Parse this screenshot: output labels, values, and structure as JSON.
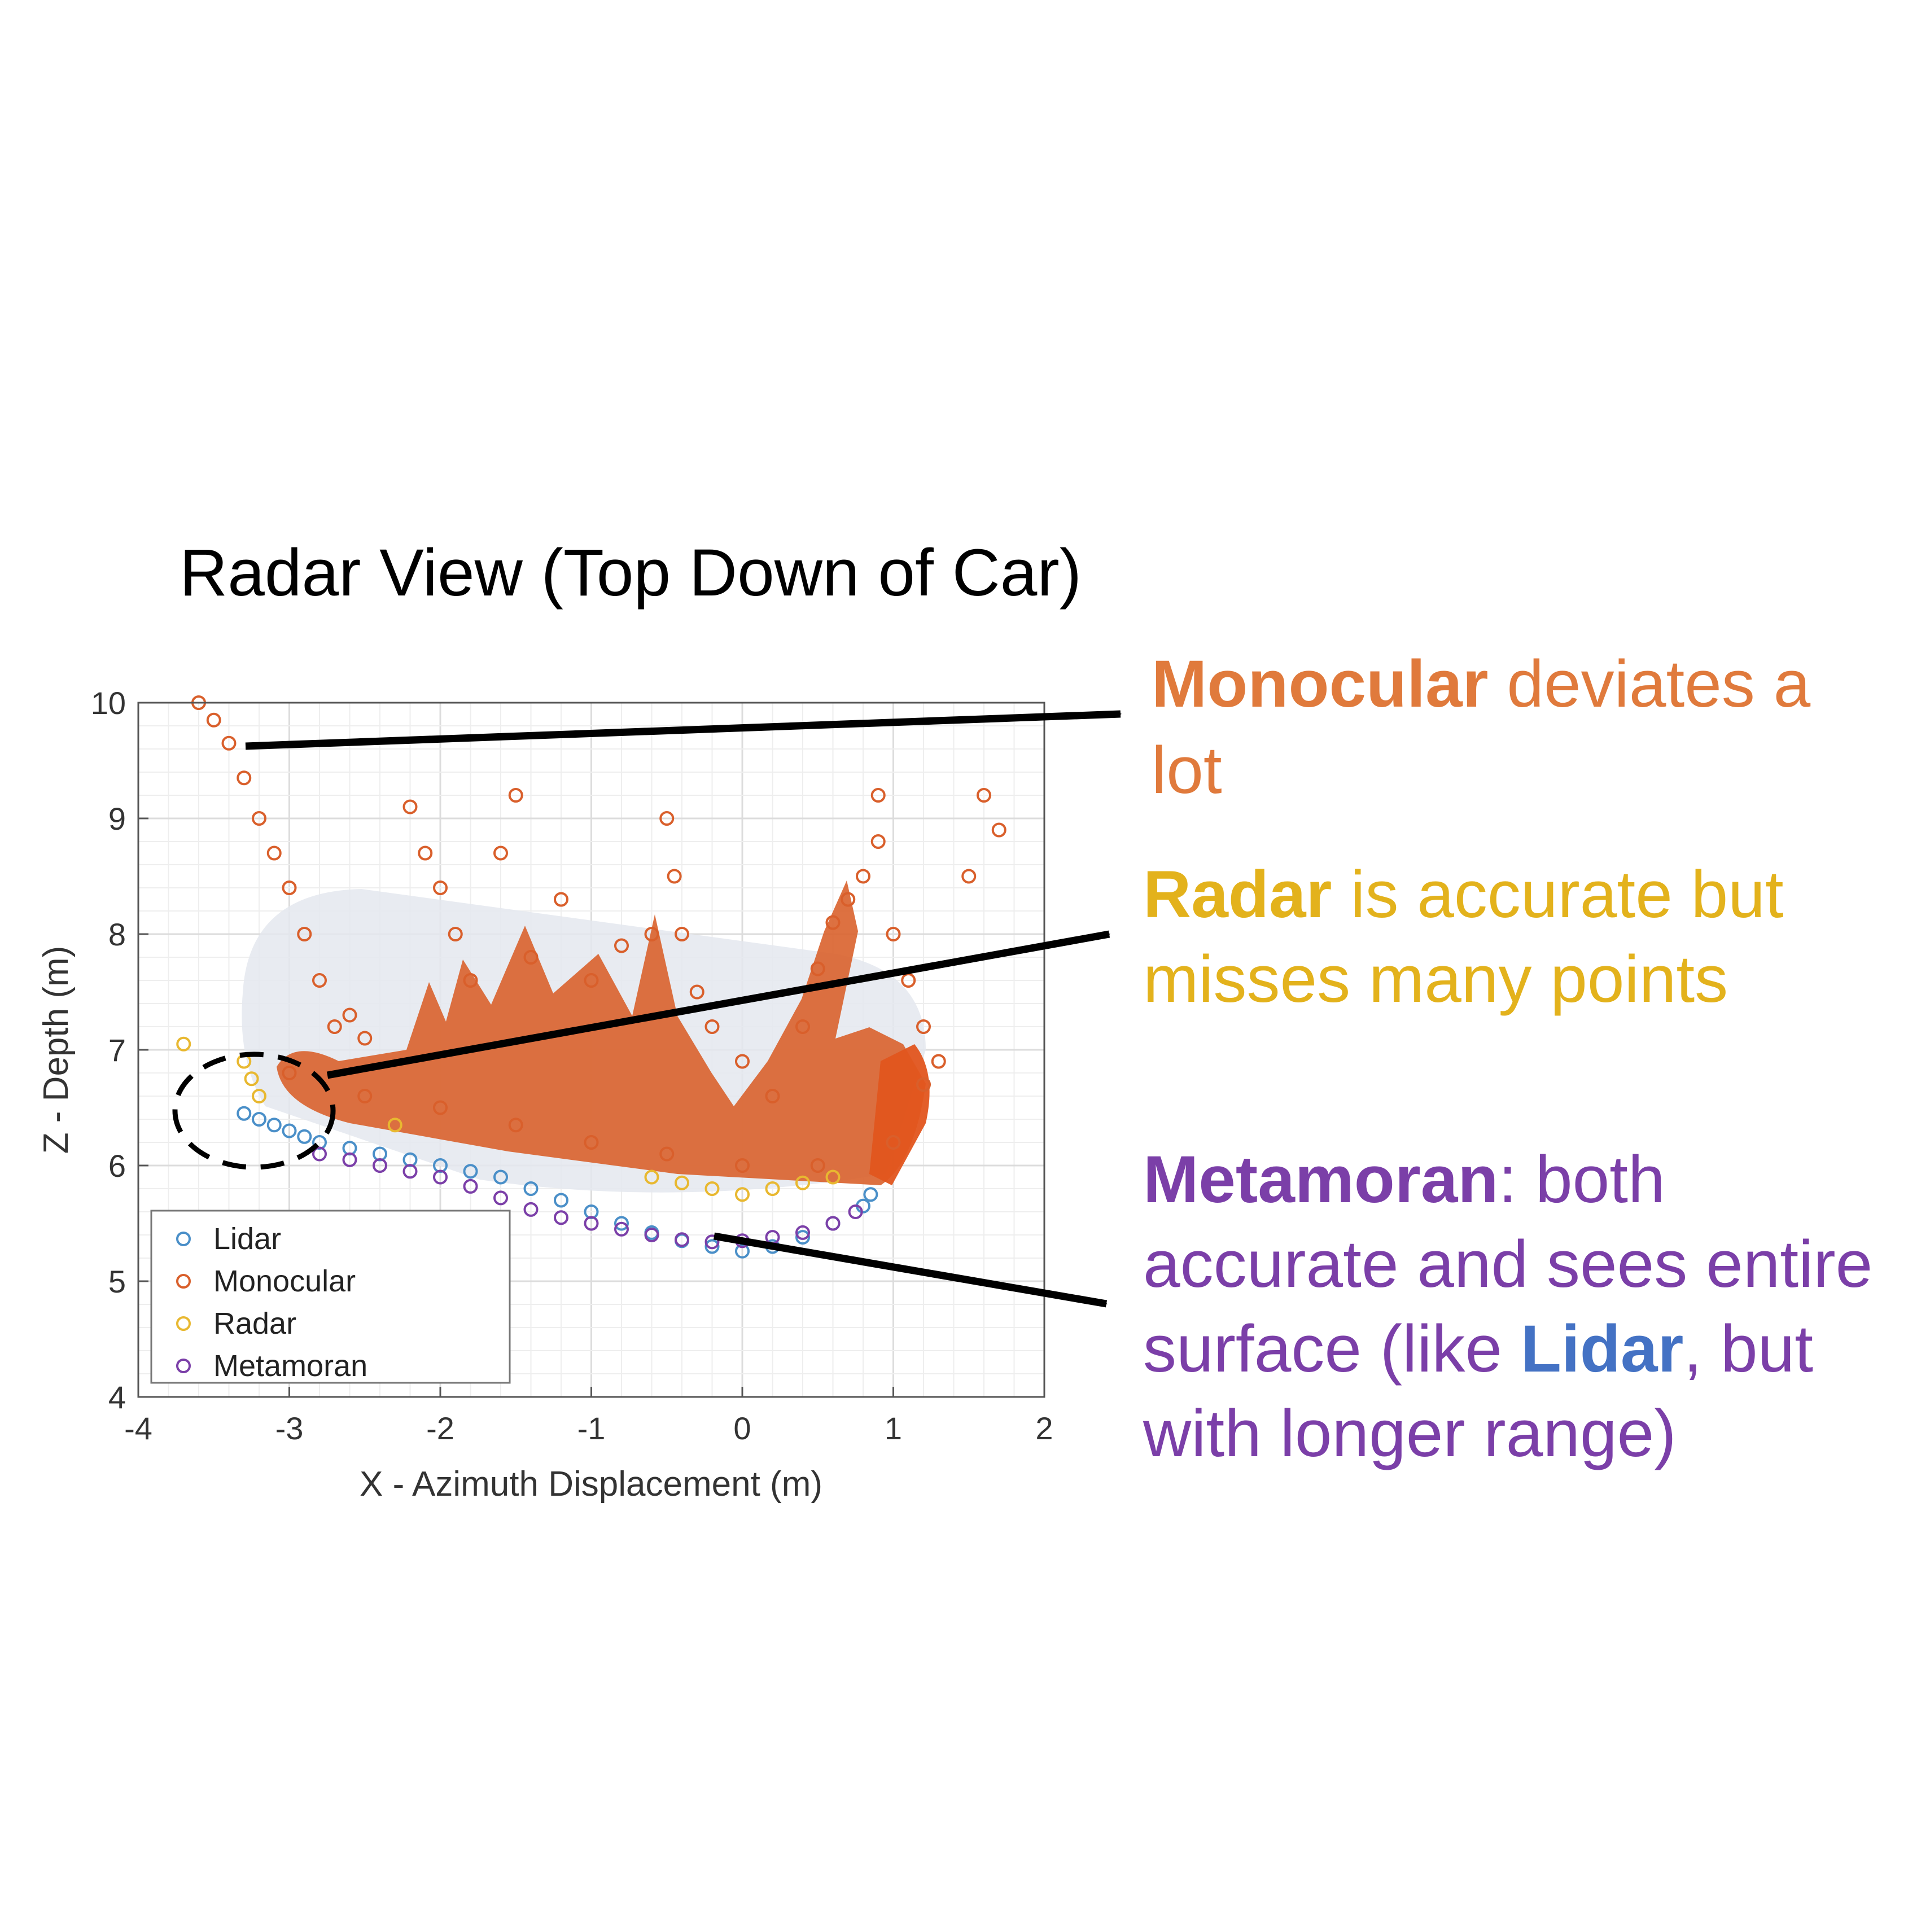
{
  "chart_data": {
    "type": "scatter",
    "title": "Radar View (Top Down of Car)",
    "xlabel": "X - Azimuth Displacement (m)",
    "ylabel": "Z - Depth (m)",
    "xlim": [
      -4,
      2
    ],
    "ylim": [
      4,
      10
    ],
    "xticks": [
      "-4",
      "-3",
      "-2",
      "-1",
      "0",
      "1",
      "2"
    ],
    "yticks": [
      "4",
      "5",
      "6",
      "7",
      "8",
      "9",
      "10"
    ],
    "grid": true,
    "legend_position": "bottom-left",
    "series": [
      {
        "name": "Lidar",
        "color": "#4a8fc8",
        "points": [
          [
            -3.3,
            6.45
          ],
          [
            -3.2,
            6.4
          ],
          [
            -3.1,
            6.35
          ],
          [
            -3.0,
            6.3
          ],
          [
            -2.9,
            6.25
          ],
          [
            -2.8,
            6.2
          ],
          [
            -2.6,
            6.15
          ],
          [
            -2.4,
            6.1
          ],
          [
            -2.2,
            6.05
          ],
          [
            -2.0,
            6.0
          ],
          [
            -1.8,
            5.95
          ],
          [
            -1.6,
            5.9
          ],
          [
            -1.4,
            5.8
          ],
          [
            -1.2,
            5.7
          ],
          [
            -1.0,
            5.6
          ],
          [
            -0.8,
            5.5
          ],
          [
            -0.6,
            5.42
          ],
          [
            -0.4,
            5.35
          ],
          [
            -0.2,
            5.3
          ],
          [
            0.0,
            5.26
          ],
          [
            0.2,
            5.3
          ],
          [
            0.4,
            5.38
          ],
          [
            0.6,
            5.5
          ],
          [
            0.8,
            5.65
          ],
          [
            0.85,
            5.75
          ]
        ]
      },
      {
        "name": "Monocular",
        "color": "#d95f2b",
        "points": [
          [
            -3.6,
            10.0
          ],
          [
            -3.5,
            9.85
          ],
          [
            -3.4,
            9.65
          ],
          [
            -3.3,
            9.35
          ],
          [
            -3.2,
            9.0
          ],
          [
            -3.1,
            8.7
          ],
          [
            -3.0,
            8.4
          ],
          [
            -2.9,
            8.0
          ],
          [
            -2.8,
            7.6
          ],
          [
            -2.7,
            7.2
          ],
          [
            -2.6,
            7.3
          ],
          [
            -2.5,
            7.1
          ],
          [
            -2.2,
            9.1
          ],
          [
            -2.1,
            8.7
          ],
          [
            -2.0,
            8.4
          ],
          [
            -1.9,
            8.0
          ],
          [
            -1.8,
            7.6
          ],
          [
            -1.5,
            9.2
          ],
          [
            -1.6,
            8.7
          ],
          [
            -1.4,
            7.8
          ],
          [
            -1.2,
            8.3
          ],
          [
            -1.0,
            7.6
          ],
          [
            -0.8,
            7.9
          ],
          [
            -0.6,
            8.0
          ],
          [
            -0.5,
            9.0
          ],
          [
            -0.45,
            8.5
          ],
          [
            -0.4,
            8.0
          ],
          [
            -0.3,
            7.5
          ],
          [
            -0.2,
            7.2
          ],
          [
            0.0,
            6.9
          ],
          [
            0.2,
            6.6
          ],
          [
            0.4,
            7.2
          ],
          [
            0.5,
            7.7
          ],
          [
            0.6,
            8.1
          ],
          [
            0.7,
            8.3
          ],
          [
            0.8,
            8.5
          ],
          [
            0.9,
            8.8
          ],
          [
            0.9,
            9.2
          ],
          [
            1.0,
            8.0
          ],
          [
            1.1,
            7.6
          ],
          [
            1.2,
            7.2
          ],
          [
            1.3,
            6.9
          ],
          [
            1.5,
            8.5
          ],
          [
            1.6,
            9.2
          ],
          [
            1.7,
            8.9
          ],
          [
            -3.0,
            6.8
          ],
          [
            -2.5,
            6.6
          ],
          [
            -2.0,
            6.5
          ],
          [
            -1.5,
            6.35
          ],
          [
            -1.0,
            6.2
          ],
          [
            -0.5,
            6.1
          ],
          [
            0.0,
            6.0
          ],
          [
            0.5,
            6.0
          ],
          [
            1.0,
            6.2
          ],
          [
            1.2,
            6.7
          ]
        ]
      },
      {
        "name": "Radar",
        "color": "#e8b830",
        "points": [
          [
            -3.7,
            7.05
          ],
          [
            -3.3,
            6.9
          ],
          [
            -3.25,
            6.75
          ],
          [
            -3.2,
            6.6
          ],
          [
            -2.3,
            6.35
          ],
          [
            -0.6,
            5.9
          ],
          [
            -0.4,
            5.85
          ],
          [
            -0.2,
            5.8
          ],
          [
            0.0,
            5.75
          ],
          [
            0.2,
            5.8
          ],
          [
            0.4,
            5.85
          ],
          [
            0.6,
            5.9
          ]
        ]
      },
      {
        "name": "Metamoran",
        "color": "#7b3fa8",
        "points": [
          [
            -2.8,
            6.1
          ],
          [
            -2.6,
            6.05
          ],
          [
            -2.4,
            6.0
          ],
          [
            -2.2,
            5.95
          ],
          [
            -2.0,
            5.9
          ],
          [
            -1.8,
            5.82
          ],
          [
            -1.6,
            5.72
          ],
          [
            -1.4,
            5.62
          ],
          [
            -1.2,
            5.55
          ],
          [
            -1.0,
            5.5
          ],
          [
            -0.8,
            5.45
          ],
          [
            -0.6,
            5.4
          ],
          [
            -0.4,
            5.36
          ],
          [
            -0.2,
            5.34
          ],
          [
            0.0,
            5.35
          ],
          [
            0.2,
            5.38
          ],
          [
            0.4,
            5.42
          ],
          [
            0.6,
            5.5
          ],
          [
            0.75,
            5.6
          ]
        ]
      }
    ]
  },
  "annotations": {
    "monocular": {
      "bold": "Monocular",
      "rest_line1": " deviates a",
      "line2": "lot",
      "color": "#e07a3c"
    },
    "radar": {
      "bold": "Radar",
      "rest_line1": " is accurate but",
      "line2": "misses many points",
      "color": "#e3b21c"
    },
    "metamoran": {
      "bold": "Metamoran",
      "rest_line1": ": both",
      "line2": "accurate and sees entire",
      "line3_a": "surface (like ",
      "line3_lidar": "Lidar",
      "line3_b": ", but",
      "line4": "with longer range)",
      "color": "#7b3fa8",
      "lidar_color": "#4472c4"
    }
  }
}
